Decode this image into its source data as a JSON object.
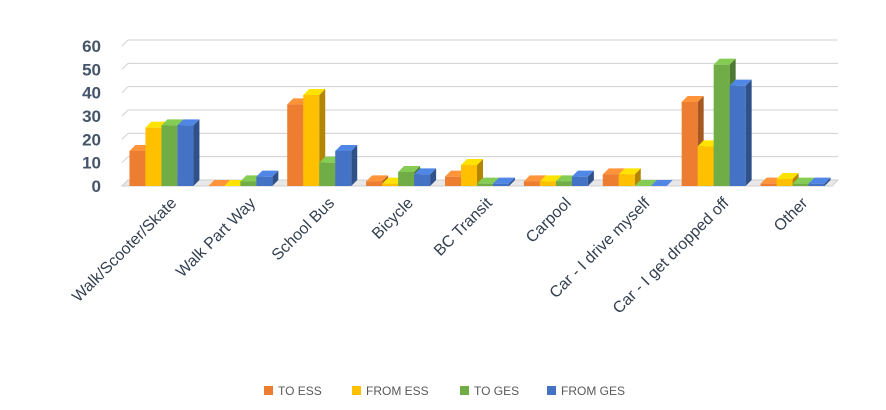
{
  "chart_data": {
    "type": "bar",
    "title": "",
    "xlabel": "",
    "ylabel": "",
    "ylim": [
      0,
      60
    ],
    "yticks": [
      0,
      10,
      20,
      30,
      40,
      50,
      60
    ],
    "grid": true,
    "legend_position": "bottom",
    "categories": [
      "Walk/Scooter/Skate",
      "Walk Part Way",
      "School Bus",
      "Bicycle",
      "BC Transit",
      "Carpool",
      "Car - I drive myself",
      "Car - I get dropped off",
      "Other"
    ],
    "series": [
      {
        "name": "TO ESS",
        "color": "#ed7d31",
        "values": [
          15,
          0,
          35,
          2,
          4,
          2,
          5,
          36,
          1
        ]
      },
      {
        "name": "FROM ESS",
        "color": "#ffc000",
        "values": [
          25,
          0,
          39,
          1,
          9,
          2,
          5,
          17,
          3
        ]
      },
      {
        "name": "TO GES",
        "color": "#70ad47",
        "values": [
          26,
          2,
          10,
          6,
          1,
          2,
          0,
          52,
          1
        ]
      },
      {
        "name": "FROM GES",
        "color": "#4472c4",
        "values": [
          26,
          4,
          15,
          5,
          1,
          4,
          0,
          43,
          1
        ]
      }
    ]
  }
}
